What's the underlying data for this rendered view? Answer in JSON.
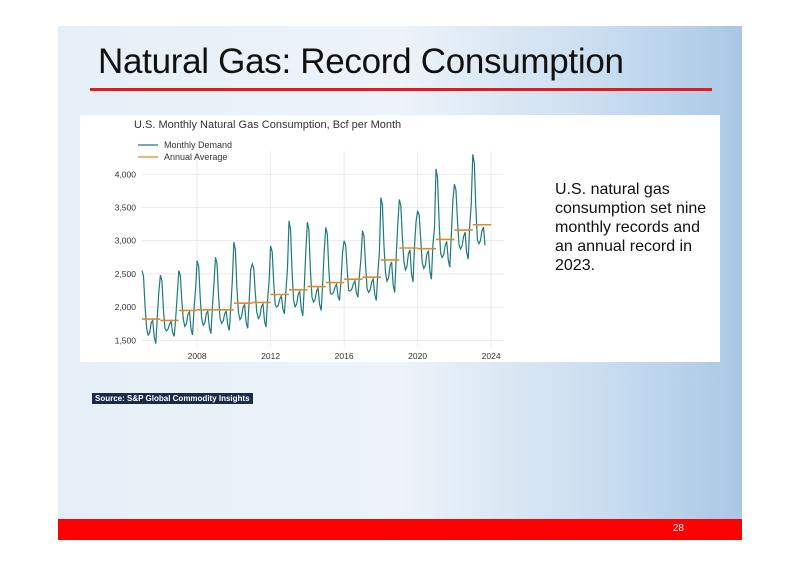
{
  "slide": {
    "title": "Natural Gas: Record Consumption",
    "callout": "U.S. natural gas consumption set nine monthly records and an annual record in 2023.",
    "source": "Source: S&P Global Commodity Insights",
    "page_number": "28"
  },
  "colors": {
    "monthly_line": "#1f7a7a",
    "annual_avg": "#e08a2a",
    "accent_red": "#e41a1c",
    "footer_red": "#ff0000"
  },
  "chart_data": {
    "type": "line",
    "title": "U.S. Monthly Natural Gas Consumption, Bcf per Month",
    "xlabel": "",
    "ylabel": "",
    "xlim": [
      2005,
      2024.7
    ],
    "ylim": [
      1400,
      4350
    ],
    "x_ticks": [
      2008,
      2012,
      2016,
      2020,
      2024
    ],
    "x_tick_labels": [
      "2008",
      "2012",
      "2016",
      "2020",
      "2024"
    ],
    "y_ticks": [
      1500,
      2000,
      2500,
      3000,
      3500,
      4000
    ],
    "y_tick_labels": [
      "1,500",
      "2,000",
      "2,500",
      "3,000",
      "3,500",
      "4,000"
    ],
    "grid": true,
    "legend_position": "top-left",
    "series": [
      {
        "name": "Monthly Demand",
        "style": "line",
        "annual_avg": [
          1820,
          1800,
          1950,
          1960,
          1960,
          2060,
          2070,
          2190,
          2260,
          2310,
          2370,
          2420,
          2450,
          2710,
          2890,
          2880,
          3020,
          3160,
          3240
        ],
        "peaks": [
          2550,
          2480,
          2550,
          2700,
          2750,
          2980,
          2650,
          2920,
          3300,
          3280,
          3200,
          3000,
          3150,
          3650,
          3620,
          3450,
          4080,
          3850,
          4300
        ],
        "troughs": [
          1450,
          1560,
          1580,
          1600,
          1650,
          1680,
          1700,
          1900,
          1870,
          1950,
          2100,
          2150,
          2100,
          2220,
          2380,
          2420,
          2600,
          2720,
          2800
        ],
        "x_start": 2005,
        "end_value": 2930
      },
      {
        "name": "Annual Average",
        "style": "step",
        "years": [
          2005,
          2006,
          2007,
          2008,
          2009,
          2010,
          2011,
          2012,
          2013,
          2014,
          2015,
          2016,
          2017,
          2018,
          2019,
          2020,
          2021,
          2022,
          2023
        ],
        "values": [
          1820,
          1800,
          1950,
          1960,
          1960,
          2060,
          2070,
          2190,
          2260,
          2310,
          2370,
          2420,
          2450,
          2710,
          2890,
          2880,
          3020,
          3160,
          3240
        ]
      }
    ]
  }
}
